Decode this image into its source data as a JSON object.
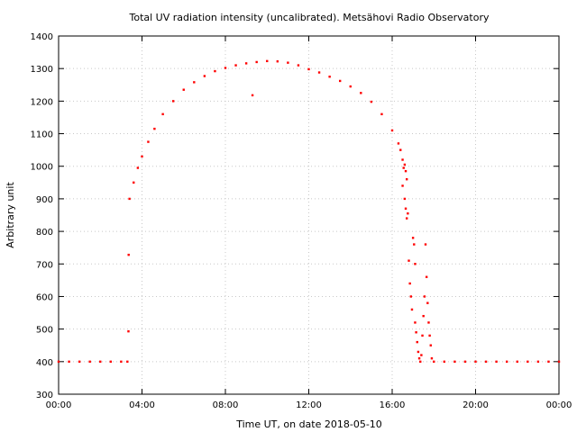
{
  "chart_data": {
    "type": "scatter",
    "title": "Total UV radiation intensity (uncalibrated). Metsähovi Radio Observatory",
    "xlabel": "Time UT, on date 2018-05-10",
    "ylabel": "Arbitrary unit",
    "xlim": [
      0,
      24
    ],
    "ylim": [
      300,
      1400
    ],
    "x_ticks": [
      0,
      4,
      8,
      12,
      16,
      20,
      24
    ],
    "x_tick_labels": [
      "00:00",
      "04:00",
      "08:00",
      "12:00",
      "16:00",
      "20:00",
      "00:00"
    ],
    "y_ticks": [
      300,
      400,
      500,
      600,
      700,
      800,
      900,
      1000,
      1100,
      1200,
      1300,
      1400
    ],
    "y_tick_labels": [
      "300",
      "400",
      "500",
      "600",
      "700",
      "800",
      "900",
      "1000",
      "1100",
      "1200",
      "1300",
      "1400"
    ],
    "grid": true,
    "color": "#ff0000",
    "series": [
      {
        "points": [
          [
            0.0,
            400
          ],
          [
            0.5,
            400
          ],
          [
            1.0,
            400
          ],
          [
            1.5,
            400
          ],
          [
            2.0,
            400
          ],
          [
            2.5,
            400
          ],
          [
            3.0,
            400
          ],
          [
            3.3,
            400
          ],
          [
            3.35,
            493
          ],
          [
            3.36,
            728
          ],
          [
            3.4,
            900
          ],
          [
            3.6,
            950
          ],
          [
            3.8,
            995
          ],
          [
            4.0,
            1030
          ],
          [
            4.3,
            1075
          ],
          [
            4.6,
            1115
          ],
          [
            5.0,
            1160
          ],
          [
            5.5,
            1200
          ],
          [
            6.0,
            1235
          ],
          [
            6.5,
            1258
          ],
          [
            7.0,
            1277
          ],
          [
            7.5,
            1292
          ],
          [
            8.0,
            1302
          ],
          [
            8.5,
            1310
          ],
          [
            9.0,
            1316
          ],
          [
            9.3,
            1218
          ],
          [
            9.5,
            1320
          ],
          [
            10.0,
            1323
          ],
          [
            10.5,
            1322
          ],
          [
            11.0,
            1318
          ],
          [
            11.5,
            1310
          ],
          [
            12.0,
            1298
          ],
          [
            12.5,
            1288
          ],
          [
            13.0,
            1275
          ],
          [
            13.5,
            1262
          ],
          [
            14.0,
            1245
          ],
          [
            14.5,
            1225
          ],
          [
            15.0,
            1198
          ],
          [
            15.5,
            1160
          ],
          [
            16.0,
            1110
          ],
          [
            16.3,
            1070
          ],
          [
            16.4,
            1050
          ],
          [
            16.5,
            1020
          ],
          [
            16.55,
            995
          ],
          [
            16.6,
            1005
          ],
          [
            16.65,
            985
          ],
          [
            16.7,
            960
          ],
          [
            16.5,
            940
          ],
          [
            16.6,
            900
          ],
          [
            16.65,
            870
          ],
          [
            16.7,
            840
          ],
          [
            16.75,
            855
          ],
          [
            16.8,
            710
          ],
          [
            16.85,
            640
          ],
          [
            16.9,
            600
          ],
          [
            16.95,
            560
          ],
          [
            17.0,
            780
          ],
          [
            17.05,
            760
          ],
          [
            17.1,
            700
          ],
          [
            17.1,
            520
          ],
          [
            17.15,
            490
          ],
          [
            17.2,
            460
          ],
          [
            17.25,
            430
          ],
          [
            17.3,
            410
          ],
          [
            17.35,
            400
          ],
          [
            17.4,
            420
          ],
          [
            17.45,
            480
          ],
          [
            17.5,
            540
          ],
          [
            17.55,
            600
          ],
          [
            17.6,
            760
          ],
          [
            17.65,
            660
          ],
          [
            17.7,
            580
          ],
          [
            17.75,
            520
          ],
          [
            17.8,
            480
          ],
          [
            17.85,
            450
          ],
          [
            17.9,
            410
          ],
          [
            18.0,
            400
          ],
          [
            18.5,
            400
          ],
          [
            19.0,
            400
          ],
          [
            19.5,
            400
          ],
          [
            20.0,
            400
          ],
          [
            20.5,
            400
          ],
          [
            21.0,
            400
          ],
          [
            21.5,
            400
          ],
          [
            22.0,
            400
          ],
          [
            22.5,
            400
          ],
          [
            23.0,
            400
          ],
          [
            23.5,
            400
          ],
          [
            24.0,
            400
          ]
        ]
      }
    ]
  }
}
